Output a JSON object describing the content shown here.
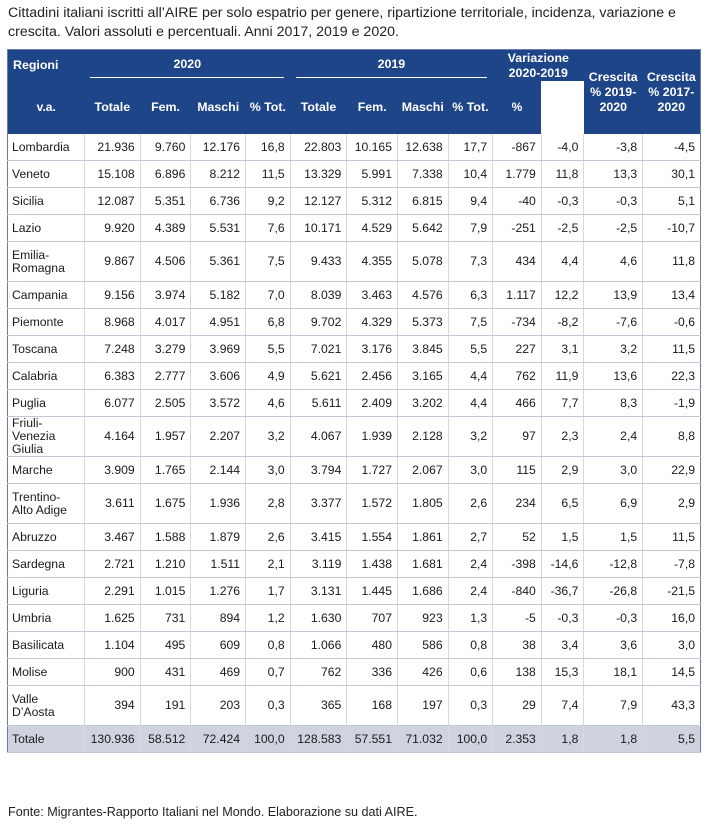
{
  "caption": "Cittadini italiani iscritti all’AIRE per solo espatrio per genere, ripartizione territoriale, incidenza, variazione e crescita. Valori assoluti e percentuali. Anni 2017, 2019 e 2020.",
  "header": {
    "regioni": "Regioni",
    "year_2020": "2020",
    "year_2019": "2019",
    "variazione": "Variazione 2020-2019",
    "crescita_2019": "Crescita % 2019-2020",
    "crescita_2017": "Crescita % 2017-2020",
    "totale": "Totale",
    "fem": "Fem.",
    "maschi": "Maschi",
    "pct_tot": "% Tot.",
    "va": "v.a.",
    "pct": "%"
  },
  "rows": [
    [
      "Lombardia",
      "21.936",
      "9.760",
      "12.176",
      "16,8",
      "22.803",
      "10.165",
      "12.638",
      "17,7",
      "-867",
      "-4,0",
      "-3,8",
      "-4,5"
    ],
    [
      "Veneto",
      "15.108",
      "6.896",
      "8.212",
      "11,5",
      "13.329",
      "5.991",
      "7.338",
      "10,4",
      "1.779",
      "11,8",
      "13,3",
      "30,1"
    ],
    [
      "Sicilia",
      "12.087",
      "5.351",
      "6.736",
      "9,2",
      "12.127",
      "5.312",
      "6.815",
      "9,4",
      "-40",
      "-0,3",
      "-0,3",
      "5,1"
    ],
    [
      "Lazio",
      "9.920",
      "4.389",
      "5.531",
      "7,6",
      "10.171",
      "4.529",
      "5.642",
      "7,9",
      "-251",
      "-2,5",
      "-2,5",
      "-10,7"
    ],
    [
      "Emilia-Romagna",
      "9.867",
      "4.506",
      "5.361",
      "7,5",
      "9.433",
      "4.355",
      "5.078",
      "7,3",
      "434",
      "4,4",
      "4,6",
      "11,8"
    ],
    [
      "Campania",
      "9.156",
      "3.974",
      "5.182",
      "7,0",
      "8.039",
      "3.463",
      "4.576",
      "6,3",
      "1.117",
      "12,2",
      "13,9",
      "13,4"
    ],
    [
      "Piemonte",
      "8.968",
      "4.017",
      "4.951",
      "6,8",
      "9.702",
      "4.329",
      "5.373",
      "7,5",
      "-734",
      "-8,2",
      "-7,6",
      "-0,6"
    ],
    [
      "Toscana",
      "7.248",
      "3.279",
      "3.969",
      "5,5",
      "7.021",
      "3.176",
      "3.845",
      "5,5",
      "227",
      "3,1",
      "3,2",
      "11,5"
    ],
    [
      "Calabria",
      "6.383",
      "2.777",
      "3.606",
      "4,9",
      "5.621",
      "2.456",
      "3.165",
      "4,4",
      "762",
      "11,9",
      "13,6",
      "22,3"
    ],
    [
      "Puglia",
      "6.077",
      "2.505",
      "3.572",
      "4,6",
      "5.611",
      "2.409",
      "3.202",
      "4,4",
      "466",
      "7,7",
      "8,3",
      "-1,9"
    ],
    [
      "Friuli-Venezia Giulia",
      "4.164",
      "1.957",
      "2.207",
      "3,2",
      "4.067",
      "1.939",
      "2.128",
      "3,2",
      "97",
      "2,3",
      "2,4",
      "8,8"
    ],
    [
      "Marche",
      "3.909",
      "1.765",
      "2.144",
      "3,0",
      "3.794",
      "1.727",
      "2.067",
      "3,0",
      "115",
      "2,9",
      "3,0",
      "22,9"
    ],
    [
      "Trentino-Alto Adige",
      "3.611",
      "1.675",
      "1.936",
      "2,8",
      "3.377",
      "1.572",
      "1.805",
      "2,6",
      "234",
      "6,5",
      "6,9",
      "2,9"
    ],
    [
      "Abruzzo",
      "3.467",
      "1.588",
      "1.879",
      "2,6",
      "3.415",
      "1.554",
      "1.861",
      "2,7",
      "52",
      "1,5",
      "1,5",
      "11,5"
    ],
    [
      "Sardegna",
      "2.721",
      "1.210",
      "1.511",
      "2,1",
      "3.119",
      "1.438",
      "1.681",
      "2,4",
      "-398",
      "-14,6",
      "-12,8",
      "-7,8"
    ],
    [
      "Liguria",
      "2.291",
      "1.015",
      "1.276",
      "1,7",
      "3.131",
      "1.445",
      "1.686",
      "2,4",
      "-840",
      "-36,7",
      "-26,8",
      "-21,5"
    ],
    [
      "Umbria",
      "1.625",
      "731",
      "894",
      "1,2",
      "1.630",
      "707",
      "923",
      "1,3",
      "-5",
      "-0,3",
      "-0,3",
      "16,0"
    ],
    [
      "Basilicata",
      "1.104",
      "495",
      "609",
      "0,8",
      "1.066",
      "480",
      "586",
      "0,8",
      "38",
      "3,4",
      "3,6",
      "3,0"
    ],
    [
      "Molise",
      "900",
      "431",
      "469",
      "0,7",
      "762",
      "336",
      "426",
      "0,6",
      "138",
      "15,3",
      "18,1",
      "14,5"
    ],
    [
      "Valle D’Aosta",
      "394",
      "191",
      "203",
      "0,3",
      "365",
      "168",
      "197",
      "0,3",
      "29",
      "7,4",
      "7,9",
      "43,3"
    ]
  ],
  "total": [
    "Totale",
    "130.936",
    "58.512",
    "72.424",
    "100,0",
    "128.583",
    "57.551",
    "71.032",
    "100,0",
    "2.353",
    "1,8",
    "1,8",
    "5,5"
  ],
  "source": "Fonte: Migrantes-Rapporto Italiani nel Mondo. Elaborazione su dati AIRE.",
  "colors": {
    "header_bg": "#1f4589",
    "total_bg": "#cfd3e0"
  }
}
